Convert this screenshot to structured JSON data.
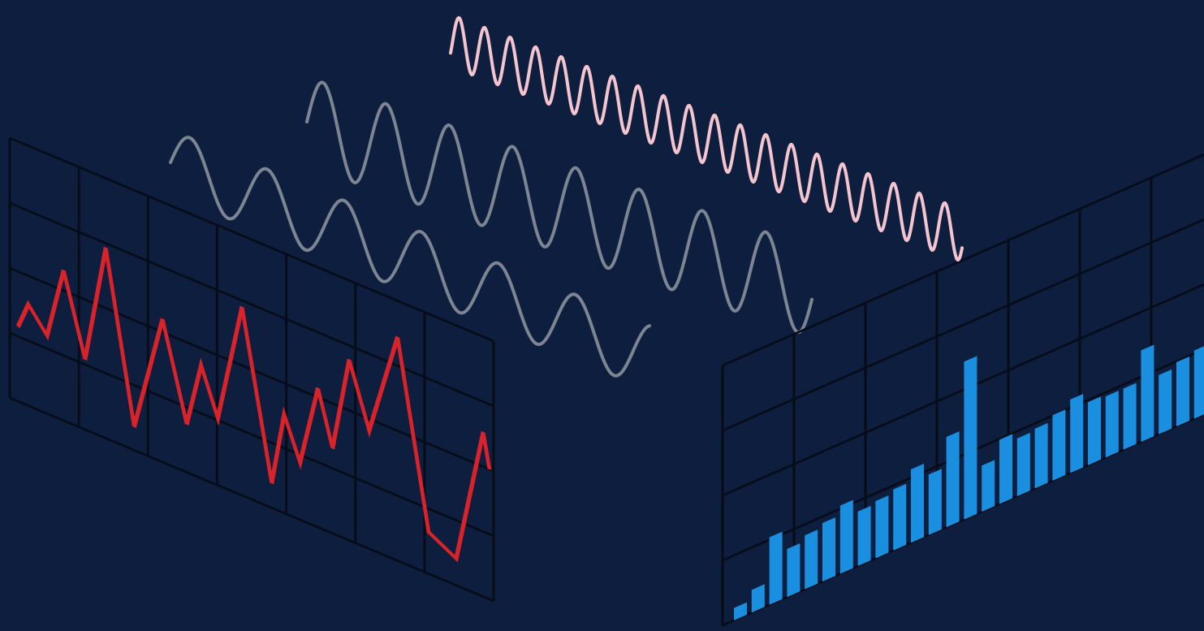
{
  "chart_data": [
    {
      "type": "line",
      "x": [
        0.12,
        0.27,
        0.54,
        0.78,
        1.09,
        1.39,
        1.8,
        2.21,
        2.56,
        2.77,
        3.01,
        3.36,
        3.79,
        3.97,
        4.2,
        4.46,
        4.67,
        4.91,
        5.2,
        5.61,
        6.06,
        6.46,
        6.85,
        6.94
      ],
      "values": [
        1.15,
        1.56,
        1.2,
        2.31,
        1.08,
        2.93,
        0.36,
        2.2,
        0.74,
        1.74,
        1.03,
        2.9,
        0.38,
        1.52,
        0.88,
        2.14,
        1.31,
        2.78,
        1.82,
        3.44,
        0.64,
        0.41,
        2.53,
        2.0
      ],
      "color": "#d8232a",
      "xlim": [
        0,
        7
      ],
      "ylim": [
        0,
        4
      ],
      "xticks": [
        0,
        1,
        2,
        3,
        4,
        5,
        6,
        7
      ],
      "yticks": [
        0,
        1,
        2,
        3,
        4
      ],
      "grid": true
    },
    {
      "type": "bar",
      "categories": [
        null,
        null,
        null,
        null,
        null,
        null,
        null,
        null,
        null,
        null,
        null,
        null,
        null,
        null,
        null,
        null,
        null,
        null,
        null,
        null,
        null,
        null,
        null,
        null,
        null,
        null,
        null
      ],
      "values": [
        0.19,
        0.35,
        1.04,
        0.74,
        0.83,
        0.9,
        1.05,
        0.84,
        0.88,
        0.94,
        1.13,
        0.93,
        1.39,
        2.43,
        0.71,
        0.99,
        0.89,
        0.92,
        1.01,
        1.13,
        0.97,
        0.94,
        0.94,
        1.41,
        0.91,
        0.99,
        1.05
      ],
      "color": "#1a8fe0",
      "ylim": [
        0,
        4
      ],
      "yticks": [
        0,
        1,
        2,
        3,
        4
      ],
      "grid": true
    }
  ]
}
